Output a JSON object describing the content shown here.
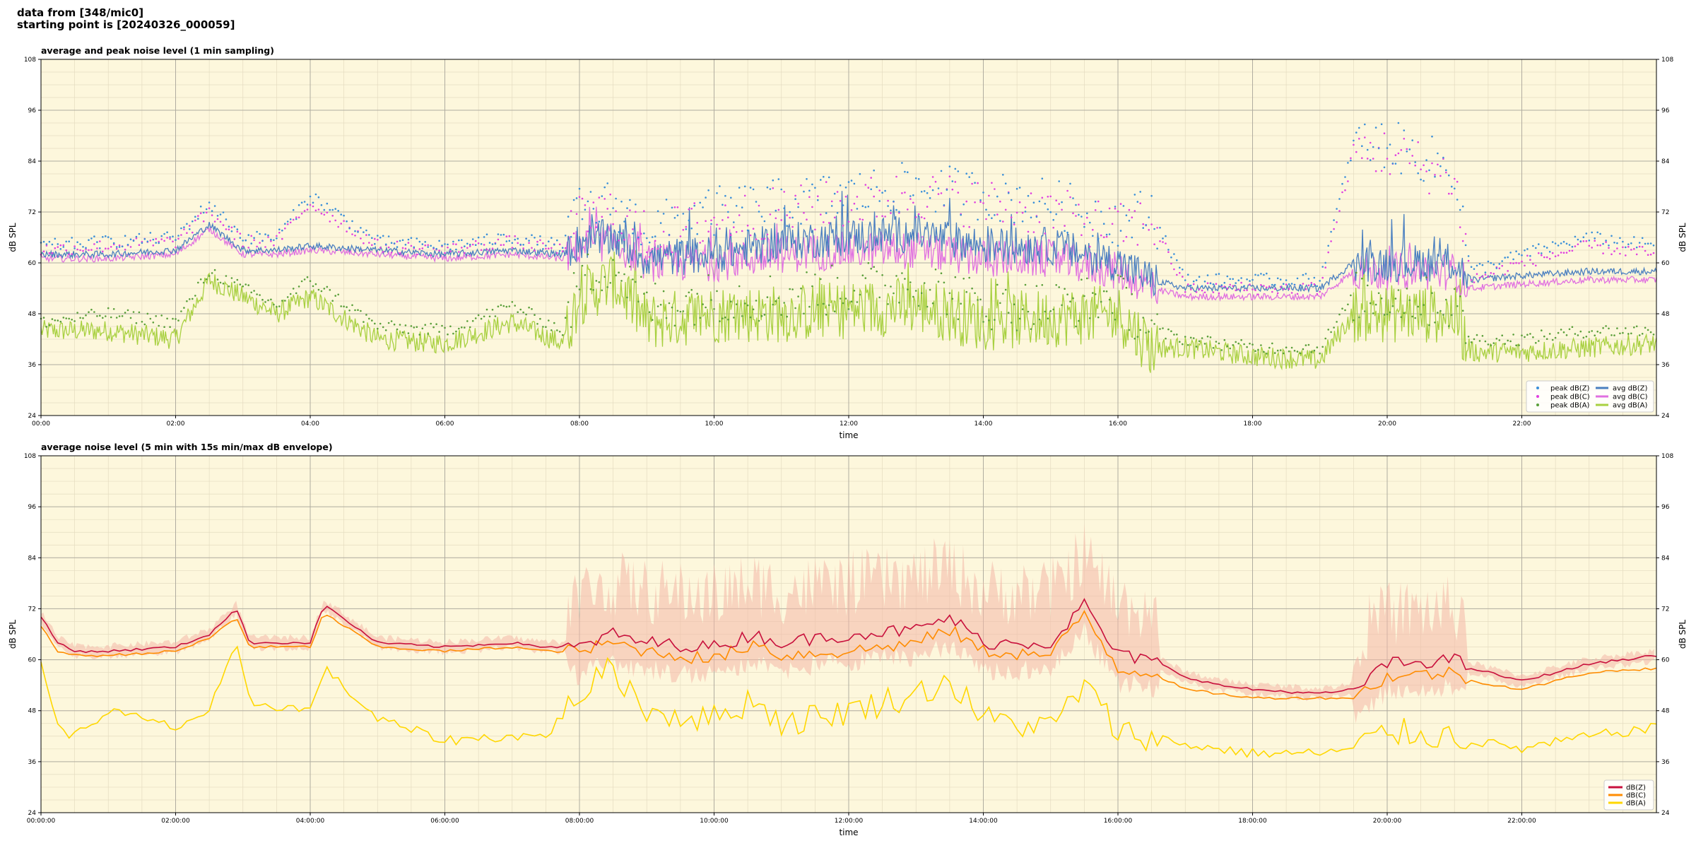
{
  "header": {
    "line1": "data from [348/mic0]",
    "line2": "starting point is [20240326_000059]"
  },
  "colors": {
    "panel_bg": "#fdf7dc",
    "peak_z": "#3a8fd9",
    "peak_c": "#e040e0",
    "peak_a": "#5a9f3a",
    "avg_z": "#4a7fc0",
    "avg_c": "#e070e0",
    "avg_a": "#a8d040",
    "dbz": "#c8103c",
    "dbc": "#ff8c00",
    "dba": "#ffd700",
    "envelope": "#f4b8a8"
  },
  "chart_data": [
    {
      "type": "line",
      "title": "average and peak noise level (1 min sampling)",
      "xlabel": "time",
      "ylabel": "dB SPL",
      "ylim": [
        24,
        108
      ],
      "xlim_hours": [
        0,
        24
      ],
      "y_ticks": [
        "24",
        "36",
        "48",
        "60",
        "72",
        "84",
        "96",
        "108"
      ],
      "x_ticks": [
        "00:00",
        "02:00",
        "04:00",
        "06:00",
        "08:00",
        "10:00",
        "12:00",
        "14:00",
        "16:00",
        "18:00",
        "20:00",
        "22:00"
      ],
      "grid": true,
      "legend_position": "bottom-right",
      "legend": [
        "peak dB(Z)",
        "peak dB(C)",
        "peak dB(A)",
        "avg dB(Z)",
        "avg dB(C)",
        "avg dB(A)"
      ],
      "series": [
        {
          "name": "avg dB(Z)",
          "x_hours": [
            0,
            1,
            2,
            2.5,
            3,
            3.5,
            4,
            5,
            6,
            7,
            7.75,
            8,
            8.5,
            9,
            10,
            11,
            12,
            13,
            14,
            15,
            16,
            16.5,
            17,
            18,
            19,
            19.5,
            20,
            21,
            21.25,
            22,
            23,
            24
          ],
          "values": [
            62,
            62,
            63,
            69,
            63,
            63,
            64,
            63,
            62,
            63,
            62,
            65,
            66,
            61,
            62,
            65,
            66,
            67,
            64,
            64,
            60,
            56,
            54,
            54,
            54,
            60,
            60,
            60,
            56,
            57,
            58,
            58
          ]
        },
        {
          "name": "avg dB(C)",
          "x_hours": [
            0,
            1,
            2,
            2.5,
            3,
            3.5,
            4,
            5,
            6,
            7,
            7.75,
            8,
            8.5,
            9,
            10,
            11,
            12,
            13,
            14,
            15,
            16,
            16.5,
            17,
            18,
            19,
            19.5,
            20,
            21,
            21.25,
            22,
            23,
            24
          ],
          "values": [
            61,
            61,
            62,
            68,
            62,
            62,
            63,
            62,
            61,
            62,
            61,
            64,
            65,
            60,
            60,
            62,
            63,
            63,
            61,
            61,
            58,
            54,
            52,
            52,
            52,
            58,
            58,
            58,
            54,
            55,
            56,
            56
          ]
        },
        {
          "name": "avg dB(A)",
          "x_hours": [
            0,
            1,
            2,
            2.5,
            3,
            3.5,
            4,
            5,
            6,
            7,
            7.75,
            8,
            8.5,
            9,
            10,
            11,
            12,
            13,
            14,
            15,
            16,
            16.5,
            17,
            18,
            19,
            19.5,
            20,
            21,
            21.25,
            22,
            23,
            24
          ],
          "values": [
            44,
            44,
            42,
            56,
            52,
            48,
            52,
            42,
            41,
            46,
            41,
            52,
            56,
            46,
            48,
            48,
            49,
            50,
            46,
            47,
            48,
            40,
            40,
            38,
            37,
            48,
            48,
            48,
            39,
            39,
            40,
            41
          ]
        },
        {
          "name": "peak dB(Z)",
          "x_hours": [
            0,
            1,
            2,
            2.5,
            3,
            3.5,
            4,
            5,
            6,
            7,
            7.75,
            8,
            8.5,
            9,
            10,
            11,
            12,
            13,
            14,
            15,
            16,
            16.5,
            17,
            18,
            19,
            19.5,
            20,
            21,
            21.25,
            22,
            23,
            24
          ],
          "values": [
            64,
            65,
            66,
            74,
            66,
            66,
            76,
            65,
            64,
            66,
            64,
            72,
            74,
            68,
            72,
            74,
            76,
            78,
            76,
            74,
            70,
            72,
            56,
            56,
            56,
            88,
            88,
            82,
            58,
            62,
            66,
            64
          ]
        },
        {
          "name": "peak dB(C)",
          "x_hours": [
            0,
            1,
            2,
            2.5,
            3,
            3.5,
            4,
            5,
            6,
            7,
            7.75,
            8,
            8.5,
            9,
            10,
            11,
            12,
            13,
            14,
            15,
            16,
            16.5,
            17,
            18,
            19,
            19.5,
            20,
            21,
            21.25,
            22,
            23,
            24
          ],
          "values": [
            63,
            64,
            65,
            72,
            65,
            65,
            74,
            64,
            63,
            65,
            63,
            70,
            72,
            66,
            70,
            72,
            74,
            76,
            74,
            72,
            68,
            70,
            54,
            54,
            54,
            86,
            86,
            80,
            56,
            60,
            64,
            62
          ]
        },
        {
          "name": "peak dB(A)",
          "x_hours": [
            0,
            1,
            2,
            2.5,
            3,
            3.5,
            4,
            5,
            6,
            7,
            7.75,
            8,
            8.5,
            9,
            10,
            11,
            12,
            13,
            14,
            15,
            16,
            16.5,
            17,
            18,
            19,
            19.5,
            20,
            21,
            21.25,
            22,
            23,
            24
          ],
          "values": [
            46,
            48,
            46,
            58,
            54,
            50,
            56,
            45,
            44,
            50,
            44,
            56,
            60,
            50,
            52,
            52,
            54,
            56,
            50,
            50,
            52,
            44,
            42,
            40,
            40,
            52,
            52,
            50,
            42,
            42,
            44,
            44
          ]
        }
      ]
    },
    {
      "type": "line",
      "title": "average noise level (5 min with 15s min/max dB envelope)",
      "xlabel": "time",
      "ylabel": "dB SPL",
      "ylim": [
        24,
        108
      ],
      "xlim_hours": [
        0,
        24
      ],
      "y_ticks": [
        "24",
        "36",
        "48",
        "60",
        "72",
        "84",
        "96",
        "108"
      ],
      "x_ticks": [
        "00:00:00",
        "02:00:00",
        "04:00:00",
        "06:00:00",
        "08:00:00",
        "10:00:00",
        "12:00:00",
        "14:00:00",
        "16:00:00",
        "18:00:00",
        "20:00:00",
        "22:00:00"
      ],
      "grid": true,
      "legend_position": "bottom-right",
      "legend": [
        "dB(Z)",
        "dB(C)",
        "dB(A)"
      ],
      "series": [
        {
          "name": "dB(Z)",
          "x_hours": [
            0,
            0.25,
            0.5,
            1,
            2,
            2.5,
            2.9,
            3.1,
            4,
            4.2,
            5,
            6,
            7,
            7.5,
            8,
            8.5,
            9,
            10,
            10.6,
            11,
            12,
            13,
            13.5,
            14,
            15,
            15.5,
            16,
            16.5,
            17,
            17.5,
            18,
            19,
            19.5,
            20,
            21,
            21.25,
            22,
            23,
            24
          ],
          "values": [
            70,
            64,
            62,
            62,
            63,
            66,
            72,
            64,
            64,
            73,
            64,
            63,
            64,
            63,
            63,
            66,
            64,
            63,
            66,
            64,
            66,
            67,
            70,
            64,
            64,
            73,
            61,
            60,
            56,
            54,
            53,
            52,
            53,
            59,
            60,
            58,
            55,
            59,
            61
          ]
        },
        {
          "name": "dB(C)",
          "x_hours": [
            0,
            0.25,
            0.5,
            1,
            2,
            2.5,
            2.9,
            3.1,
            4,
            4.2,
            5,
            6,
            7,
            7.5,
            8,
            8.5,
            9,
            10,
            10.6,
            11,
            12,
            13,
            13.5,
            14,
            15,
            15.5,
            16,
            16.5,
            17,
            17.5,
            18,
            19,
            19.5,
            20,
            21,
            21.25,
            22,
            23,
            24
          ],
          "values": [
            68,
            62,
            61,
            61,
            62,
            65,
            70,
            63,
            63,
            71,
            63,
            62,
            63,
            62,
            62,
            64,
            62,
            60,
            64,
            61,
            62,
            64,
            67,
            62,
            61,
            71,
            58,
            57,
            53,
            52,
            51,
            51,
            51,
            56,
            57,
            55,
            53,
            57,
            58
          ]
        },
        {
          "name": "dB(A)",
          "x_hours": [
            0,
            0.25,
            0.5,
            1,
            2,
            2.5,
            2.9,
            3.1,
            4,
            4.2,
            5,
            6,
            7,
            7.5,
            8,
            8.5,
            9,
            10,
            10.6,
            11,
            12,
            13,
            13.5,
            14,
            15,
            15.5,
            16,
            16.5,
            17,
            17.5,
            18,
            19,
            19.5,
            20,
            21,
            21.25,
            22,
            23,
            24
          ],
          "values": [
            60,
            44,
            42,
            48,
            44,
            48,
            63,
            50,
            48,
            58,
            46,
            41,
            42,
            42,
            52,
            58,
            48,
            46,
            51,
            45,
            48,
            52,
            55,
            46,
            44,
            54,
            43,
            42,
            40,
            39,
            38,
            38,
            39,
            43,
            42,
            41,
            39,
            42,
            44
          ]
        }
      ]
    }
  ]
}
